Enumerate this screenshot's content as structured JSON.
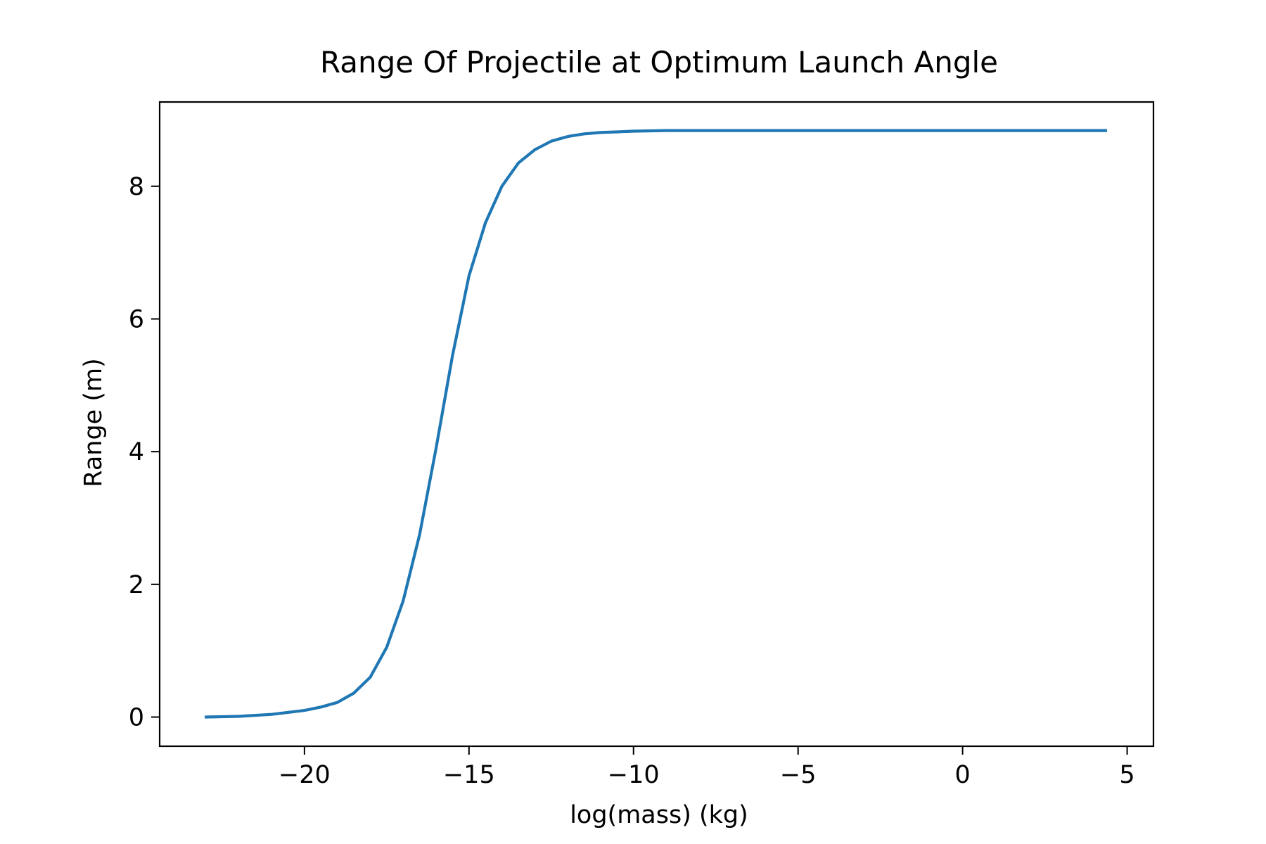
{
  "chart_data": {
    "type": "line",
    "title": "Range Of Projectile at Optimum Launch Angle",
    "xlabel": "log(mass) (kg)",
    "ylabel": "Range (m)",
    "xlim": [
      -24.4,
      5.8
    ],
    "ylim": [
      -0.44,
      9.27
    ],
    "x_ticks": [
      -20,
      -15,
      -10,
      -5,
      0,
      5
    ],
    "x_tick_labels": [
      "−20",
      "−15",
      "−10",
      "−5",
      "0",
      "5"
    ],
    "y_ticks": [
      0,
      2,
      4,
      6,
      8
    ],
    "y_tick_labels": [
      "0",
      "2",
      "4",
      "6",
      "8"
    ],
    "grid": false,
    "legend": "none",
    "series": [
      {
        "color": "#1f77b4",
        "x": [
          -23.03,
          -22,
          -21,
          -20,
          -19.5,
          -19,
          -18.5,
          -18,
          -17.5,
          -17,
          -16.5,
          -16,
          -15.5,
          -15,
          -14.5,
          -14,
          -13.5,
          -13,
          -12.5,
          -12,
          -11.5,
          -11,
          -10.5,
          -10,
          -9,
          -8,
          -7,
          -5,
          -3,
          0,
          2,
          4.39
        ],
        "y": [
          0.0,
          0.01,
          0.04,
          0.1,
          0.15,
          0.22,
          0.36,
          0.6,
          1.05,
          1.75,
          2.75,
          4.05,
          5.45,
          6.65,
          7.45,
          8.0,
          8.35,
          8.55,
          8.68,
          8.75,
          8.79,
          8.81,
          8.82,
          8.83,
          8.84,
          8.84,
          8.84,
          8.84,
          8.84,
          8.84,
          8.84,
          8.84
        ]
      }
    ]
  }
}
